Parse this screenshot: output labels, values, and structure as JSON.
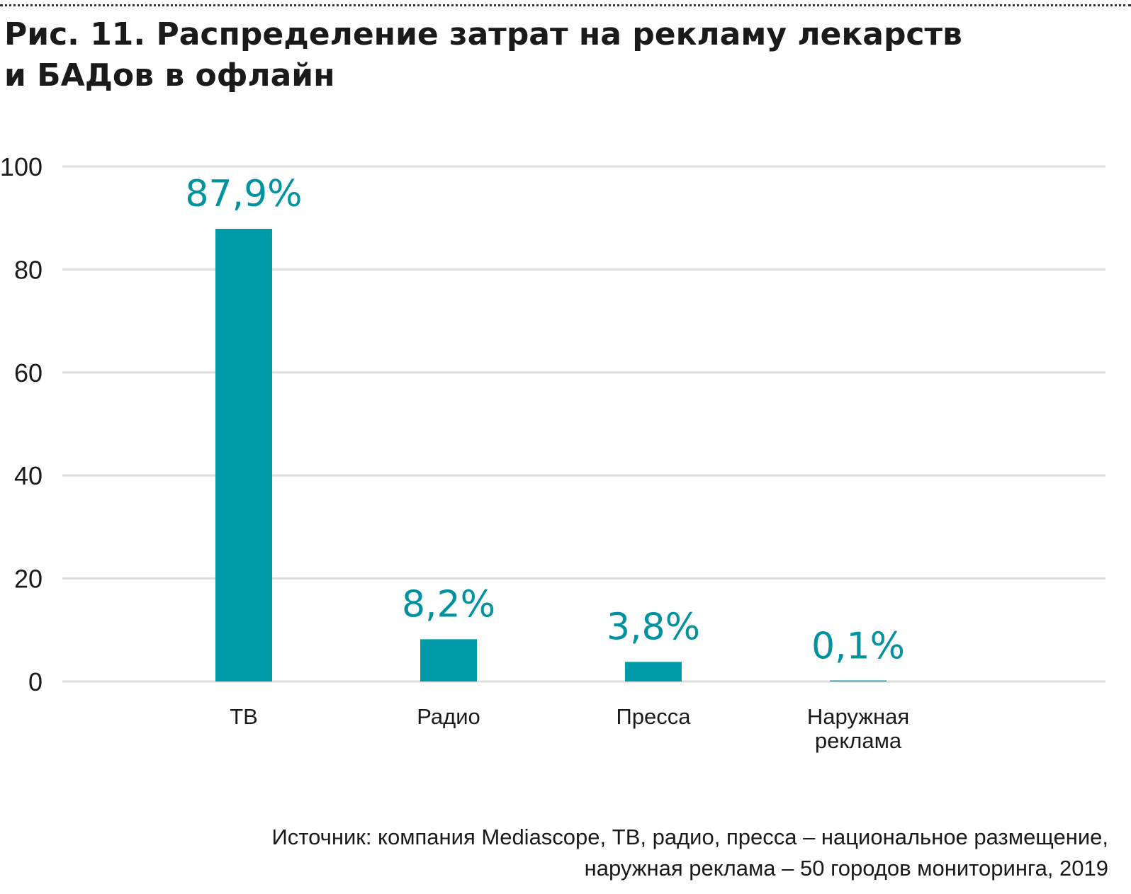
{
  "figure": {
    "title_lines": [
      "Рис. 11. Распределение затрат на рекламу лекарств",
      "и БАДов в офлайн"
    ],
    "source_lines": [
      "Источник: компания Mediascope, ТВ, радио, пресса – национальное размещение,",
      "наружная реклама – 50 городов мониторинга, 2019"
    ]
  },
  "colors": {
    "bar": "#009ba8",
    "label": "#00929f",
    "grid": "#dddddd",
    "text": "#1a1a1a"
  },
  "chart_data": {
    "type": "bar",
    "title": "Рис. 11. Распределение затрат на рекламу лекарств и БАДов в офлайн",
    "xlabel": "",
    "ylabel": "",
    "categories": [
      {
        "lines": [
          "ТВ"
        ]
      },
      {
        "lines": [
          "Радио"
        ]
      },
      {
        "lines": [
          "Пресса"
        ]
      },
      {
        "lines": [
          "Наружная",
          "реклама"
        ]
      }
    ],
    "values": [
      87.9,
      8.2,
      3.8,
      0.1
    ],
    "data_labels": [
      "87,9%",
      "8,2%",
      "3,8%",
      "0,1%"
    ],
    "ylim": [
      0,
      100
    ],
    "yticks": [
      0,
      20,
      40,
      60,
      80,
      100
    ],
    "grid": true,
    "legend": "none"
  }
}
